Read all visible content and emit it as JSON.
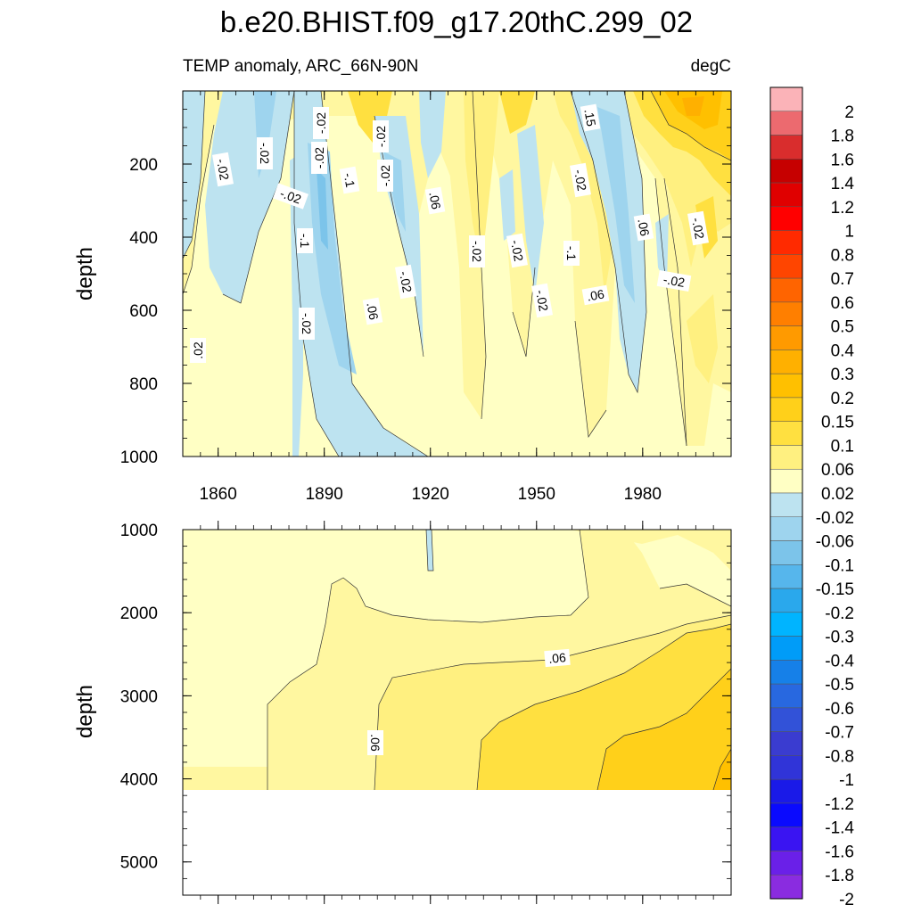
{
  "chart_data": {
    "type": "heatmap",
    "title": "b.e20.BHIST.f09_g17.20thC.299_02",
    "subtitle_left": "TEMP anomaly, ARC_66N-90N",
    "subtitle_right": "degC",
    "colorbar": {
      "labels": [
        "2",
        "1.8",
        "1.6",
        "1.4",
        "1.2",
        "1",
        "0.8",
        "0.7",
        "0.6",
        "0.5",
        "0.4",
        "0.3",
        "0.2",
        "0.15",
        "0.1",
        "0.06",
        "0.02",
        "-0.02",
        "-0.06",
        "-0.1",
        "-0.15",
        "-0.2",
        "-0.3",
        "-0.4",
        "-0.5",
        "-0.6",
        "-0.7",
        "-0.8",
        "-1",
        "-1.2",
        "-1.4",
        "-1.6",
        "-1.8",
        "-2"
      ],
      "colors": [
        "#fbb3b8",
        "#ec6a6f",
        "#d92d2d",
        "#c60000",
        "#e00000",
        "#ff0000",
        "#ff2a00",
        "#ff4500",
        "#ff6400",
        "#ff7f00",
        "#ff9a00",
        "#ffb000",
        "#ffc000",
        "#ffd01a",
        "#ffe040",
        "#fff080",
        "#ffffc4",
        "#bde3f0",
        "#9ed4ee",
        "#7cc4ea",
        "#56b6ec",
        "#2aa8ec",
        "#00b4ff",
        "#009cf8",
        "#1680e8",
        "#2868e0",
        "#3252d8",
        "#3a3cd0",
        "#3034d8",
        "#1a1ae8",
        "#0a0afe",
        "#3a14f2",
        "#6a20e8",
        "#8a2ce0"
      ]
    },
    "upper_panel": {
      "ylabel": "depth",
      "ylim": [
        0,
        1000
      ],
      "yticks": [
        "200",
        "400",
        "600",
        "800",
        "1000"
      ],
      "xlim": [
        1850,
        2005
      ],
      "xticks": [
        "1860",
        "1890",
        "1920",
        "1950",
        "1980"
      ],
      "contour_labels": [
        ".02",
        "-.02",
        "-.02",
        "-.02",
        "-.1",
        "-.02",
        "-.02",
        "-.1",
        "-.02",
        "-.02",
        "-.02",
        ".06",
        "-.02",
        "-.02",
        ".06",
        "-.02",
        "-.02",
        "-.1",
        "-.02",
        ".15",
        ".06",
        ".06",
        "-.02",
        "-.02"
      ]
    },
    "lower_panel": {
      "ylabel": "depth",
      "ylim": [
        1000,
        5400
      ],
      "yticks": [
        "1000",
        "2000",
        "3000",
        "4000",
        "5000"
      ],
      "xlim": [
        1850,
        2005
      ],
      "contour_labels": [
        ".06",
        ".06"
      ]
    }
  }
}
